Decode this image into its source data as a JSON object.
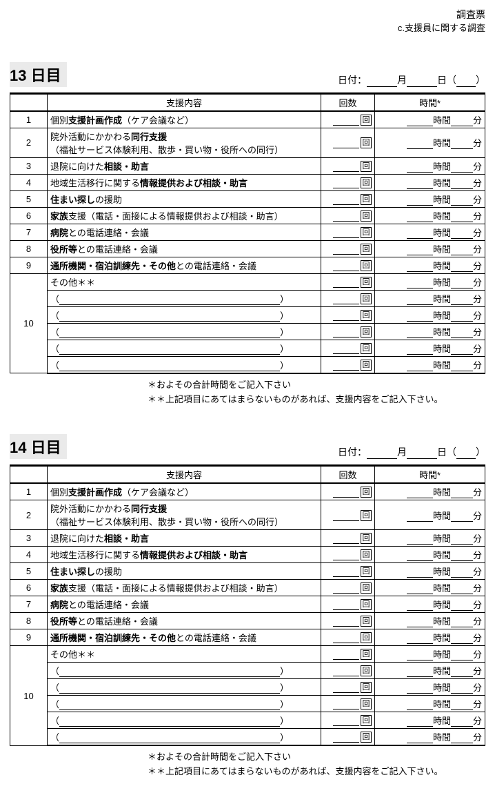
{
  "header": {
    "title": "調査票",
    "subtitle": "c.支援員に関する調査"
  },
  "date_labels": {
    "prefix": "日付：",
    "month": "月",
    "day": "日"
  },
  "table_headers": {
    "content": "支援内容",
    "count": "回数",
    "time": "時間*"
  },
  "count_unit": "回",
  "time_hour": "時間",
  "time_min": "分",
  "other_label": "その他＊＊",
  "rows": [
    {
      "n": "1",
      "html": "個別<b>支援計画作成</b>（ケア会議など）"
    },
    {
      "n": "2",
      "html": "院外活動にかかわる<b>同行支援</b><br>（福祉サービス体験利用、散歩・買い物・役所への同行）"
    },
    {
      "n": "3",
      "html": "退院に向けた<b>相談・助言</b>"
    },
    {
      "n": "4",
      "html": "地域生活移行に関する<b>情報提供および相談・助言</b>"
    },
    {
      "n": "5",
      "html": "<b>住まい探し</b>の援助"
    },
    {
      "n": "6",
      "html": "<b>家族</b>支援（電話・面接による情報提供および相談・助言）"
    },
    {
      "n": "7",
      "html": "<b>病院</b>との電話連絡・会議"
    },
    {
      "n": "8",
      "html": "<b>役所等</b>との電話連絡・会議"
    },
    {
      "n": "9",
      "html": "<b>通所機関・宿泊訓練先・その他</b>との電話連絡・会議"
    }
  ],
  "other_sub_count": 5,
  "days": [
    {
      "title": "13 日目"
    },
    {
      "title": "14 日目"
    }
  ],
  "notes": {
    "line1": "＊およその合計時間をご記入下さい",
    "line2": "＊＊上記項目にあてはまらないものがあれば、支援内容をご記入下さい。"
  }
}
